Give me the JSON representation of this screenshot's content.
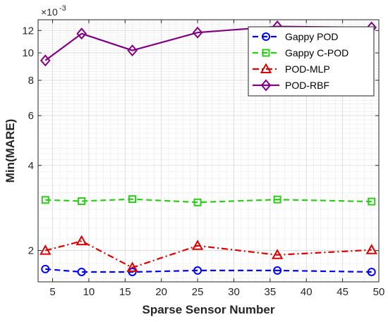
{
  "chart_data": {
    "type": "line",
    "xlabel": "Sparse Sensor Number",
    "ylabel": "Min(MARE)",
    "y_exponent_label": "×10",
    "y_exponent_power": "-3",
    "yscale": "log",
    "xlim": [
      3,
      50
    ],
    "ylim": [
      0.00155,
      0.0131
    ],
    "x_ticks": [
      5,
      10,
      15,
      20,
      25,
      30,
      35,
      40,
      45,
      50
    ],
    "y_ticks": [
      0.002,
      0.004,
      0.006,
      0.008,
      0.01,
      0.012
    ],
    "y_tick_labels": [
      "2",
      "4",
      "6",
      "8",
      "10",
      "12"
    ],
    "grid": true,
    "legend_position": "top-right",
    "x": [
      4,
      9,
      16,
      25,
      36,
      49
    ],
    "series": [
      {
        "name": "Gappy POD",
        "values": [
          0.00172,
          0.00168,
          0.00168,
          0.0017,
          0.0017,
          0.00168
        ],
        "color": "#0000ff",
        "dash": "dashed",
        "marker": "circle"
      },
      {
        "name": "Gappy C-POD",
        "values": [
          0.00302,
          0.00299,
          0.00304,
          0.00296,
          0.00303,
          0.00298
        ],
        "color": "#2ecc1a",
        "dash": "dashed",
        "marker": "square"
      },
      {
        "name": "POD-MLP",
        "values": [
          0.002,
          0.00216,
          0.00174,
          0.00208,
          0.00193,
          0.00201
        ],
        "color": "#dd0000",
        "dash": "dashdot",
        "marker": "triangle"
      },
      {
        "name": "POD-RBF",
        "values": [
          0.0094,
          0.0117,
          0.0102,
          0.0118,
          0.0124,
          0.0123
        ],
        "color": "#800080",
        "dash": "solid",
        "marker": "diamond"
      }
    ]
  }
}
